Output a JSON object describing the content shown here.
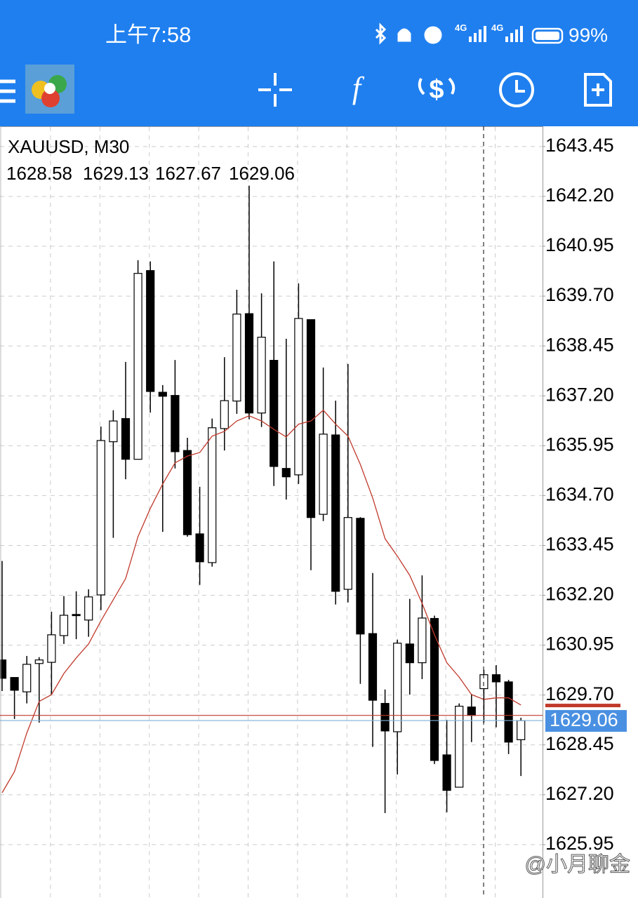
{
  "status_bar": {
    "time": "上午7:58",
    "network_1": "4G",
    "network_2": "4G",
    "battery": "99%"
  },
  "watermark": "@小月聊金",
  "chart_data": {
    "type": "candlestick",
    "title": "XAUUSD, M30",
    "bull_color": "#ffffff",
    "bear_color": "#000000",
    "ma_color": "#c0392b",
    "grid": true,
    "open": [
      1630.58,
      1630.14,
      1629.78,
      1630.49,
      1630.52,
      1631.19,
      1631.72,
      1631.58,
      1632.21,
      1636.05,
      1636.63,
      1635.61,
      1640.34,
      1637.29,
      1637.21,
      1635.83,
      1633.74,
      1633.02,
      1636.38,
      1637.07,
      1639.26,
      1636.77,
      1638.09,
      1635.38,
      1635.22,
      1639.11,
      1634.23,
      1636.22,
      1632.35,
      1634.13,
      1631.24,
      1629.49,
      1628.78,
      1630.98,
      1630.51,
      1631.62,
      1628.2,
      1627.39,
      1629.4,
      1629.86,
      1630.21,
      1630.03,
      1628.58
    ],
    "high": [
      1633.06,
      1630.14,
      1630.68,
      1630.65,
      1631.79,
      1632.18,
      1632.3,
      1632.35,
      1636.43,
      1636.84,
      1638.05,
      1640.6,
      1640.57,
      1637.47,
      1638.1,
      1636.15,
      1634.92,
      1636.63,
      1638.17,
      1639.86,
      1642.47,
      1639.77,
      1640.57,
      1638.63,
      1640.02,
      1639.11,
      1637.91,
      1637.08,
      1638.0,
      1634.16,
      1632.76,
      1629.84,
      1631.09,
      1632.11,
      1632.7,
      1631.69,
      1629.08,
      1629.49,
      1629.73,
      1630.33,
      1630.45,
      1630.08,
      1629.13
    ],
    "low": [
      1629.8,
      1629.1,
      1629.49,
      1629.01,
      1629.71,
      1630.98,
      1631.1,
      1631.16,
      1631.83,
      1633.64,
      1635.11,
      1635.61,
      1636.78,
      1633.79,
      1635.38,
      1633.67,
      1632.46,
      1632.92,
      1635.83,
      1636.75,
      1636.61,
      1636.42,
      1634.94,
      1634.6,
      1634.99,
      1632.83,
      1634.06,
      1631.97,
      1632.02,
      1629.98,
      1628.4,
      1626.74,
      1627.71,
      1629.71,
      1630.1,
      1627.97,
      1626.76,
      1627.39,
      1628.52,
      1629.01,
      1628.89,
      1628.22,
      1627.67
    ],
    "close": [
      1630.12,
      1629.82,
      1630.47,
      1630.58,
      1631.21,
      1631.7,
      1631.69,
      1632.16,
      1636.08,
      1636.57,
      1635.61,
      1640.27,
      1637.31,
      1637.19,
      1635.8,
      1633.72,
      1633.04,
      1636.4,
      1637.08,
      1639.25,
      1636.77,
      1638.67,
      1635.43,
      1635.17,
      1639.14,
      1634.15,
      1636.24,
      1632.3,
      1634.15,
      1631.23,
      1629.57,
      1628.8,
      1631.0,
      1630.51,
      1631.63,
      1628.06,
      1627.31,
      1629.42,
      1629.19,
      1630.21,
      1630.03,
      1628.52,
      1629.06
    ],
    "ma": [
      1627.25,
      1627.78,
      1628.75,
      1629.54,
      1629.71,
      1630.24,
      1630.63,
      1630.98,
      1631.56,
      1632.09,
      1632.62,
      1633.67,
      1634.38,
      1634.99,
      1635.52,
      1635.69,
      1635.78,
      1636.19,
      1636.31,
      1636.57,
      1636.7,
      1636.57,
      1636.36,
      1636.17,
      1636.49,
      1636.57,
      1636.84,
      1636.49,
      1636.19,
      1635.48,
      1634.64,
      1633.62,
      1633.18,
      1632.7,
      1632.0,
      1631.21,
      1630.51,
      1630.15,
      1629.71,
      1629.59,
      1629.63,
      1629.63,
      1629.45
    ],
    "current_price": 1629.06,
    "current_price_color": "#4a90e2",
    "ask_line": 1629.19,
    "ask_color": "#c0392b",
    "ylim": [
      1624.7,
      1643.94
    ],
    "yticks": [
      1643.45,
      {
        "value": 1642.2,
        "label": "1642.20"
      },
      1640.95,
      {
        "value": 1639.7,
        "label": "1639.70"
      },
      1638.45,
      {
        "value": 1637.2,
        "label": "1637.20"
      },
      1635.95,
      {
        "value": 1634.7,
        "label": "1634.70"
      },
      1633.45,
      {
        "value": 1632.2,
        "label": "1632.20"
      },
      1630.95,
      {
        "value": 1629.7,
        "label": "1629.70"
      },
      1628.45,
      {
        "value": 1627.2,
        "label": "1627.20"
      },
      1625.95
    ]
  }
}
